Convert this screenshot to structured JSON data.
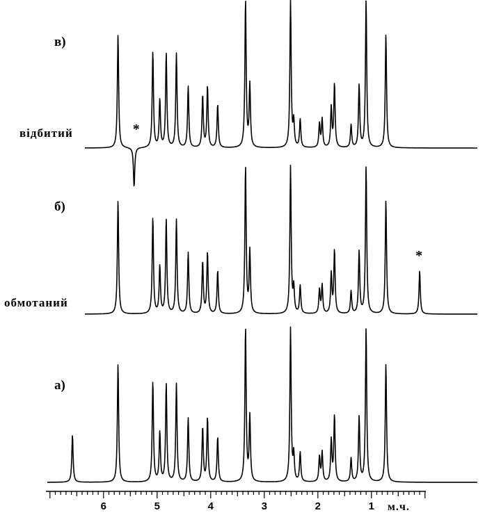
{
  "chart_data": {
    "type": "line",
    "x_axis": {
      "unit_label": "м.ч.",
      "range": [
        7.05,
        0.2
      ],
      "reversed": true,
      "major_ticks": [
        6,
        5,
        4,
        3,
        2,
        1
      ],
      "major_tick_labels": [
        "6",
        "5",
        "4",
        "3",
        "2",
        "1"
      ],
      "minor_tick_step": 0.1
    },
    "grid": false,
    "panels": [
      {
        "label": "в)",
        "trace_label": "відбитий",
        "star_label": "*",
        "star_ppm": 5.43,
        "x_start": 6.35,
        "peaks": [
          {
            "ppm": 5.73,
            "h": 1.0
          },
          {
            "ppm": 5.43,
            "h": -0.35
          },
          {
            "ppm": 5.08,
            "h": 0.85
          },
          {
            "ppm": 4.95,
            "h": 0.42
          },
          {
            "ppm": 4.83,
            "h": 0.83
          },
          {
            "ppm": 4.64,
            "h": 0.83
          },
          {
            "ppm": 4.42,
            "h": 0.54
          },
          {
            "ppm": 4.15,
            "h": 0.46
          },
          {
            "ppm": 4.06,
            "h": 0.54
          },
          {
            "ppm": 3.87,
            "h": 0.38
          },
          {
            "ppm": 3.35,
            "h": 1.3
          },
          {
            "ppm": 3.27,
            "h": 0.55
          },
          {
            "ppm": 2.51,
            "h": 1.3
          },
          {
            "ppm": 2.45,
            "h": 0.22
          },
          {
            "ppm": 2.33,
            "h": 0.25
          },
          {
            "ppm": 1.97,
            "h": 0.21
          },
          {
            "ppm": 1.92,
            "h": 0.25
          },
          {
            "ppm": 1.75,
            "h": 0.35
          },
          {
            "ppm": 1.69,
            "h": 0.56
          },
          {
            "ppm": 1.38,
            "h": 0.2
          },
          {
            "ppm": 1.23,
            "h": 0.55
          },
          {
            "ppm": 1.1,
            "h": 1.3
          },
          {
            "ppm": 0.73,
            "h": 1.0
          }
        ]
      },
      {
        "label": "б)",
        "trace_label": "обмотаний",
        "star_label": "*",
        "star_ppm": 0.1,
        "x_start": 6.35,
        "peaks": [
          {
            "ppm": 5.73,
            "h": 1.0
          },
          {
            "ppm": 5.08,
            "h": 0.85
          },
          {
            "ppm": 4.95,
            "h": 0.42
          },
          {
            "ppm": 4.83,
            "h": 0.83
          },
          {
            "ppm": 4.64,
            "h": 0.83
          },
          {
            "ppm": 4.42,
            "h": 0.54
          },
          {
            "ppm": 4.15,
            "h": 0.46
          },
          {
            "ppm": 4.06,
            "h": 0.54
          },
          {
            "ppm": 3.87,
            "h": 0.38
          },
          {
            "ppm": 3.35,
            "h": 1.3
          },
          {
            "ppm": 3.27,
            "h": 0.55
          },
          {
            "ppm": 2.51,
            "h": 1.3
          },
          {
            "ppm": 2.45,
            "h": 0.22
          },
          {
            "ppm": 2.33,
            "h": 0.25
          },
          {
            "ppm": 1.97,
            "h": 0.21
          },
          {
            "ppm": 1.92,
            "h": 0.25
          },
          {
            "ppm": 1.75,
            "h": 0.35
          },
          {
            "ppm": 1.69,
            "h": 0.56
          },
          {
            "ppm": 1.38,
            "h": 0.2
          },
          {
            "ppm": 1.23,
            "h": 0.55
          },
          {
            "ppm": 1.1,
            "h": 1.3
          },
          {
            "ppm": 0.73,
            "h": 1.0
          },
          {
            "ppm": 0.1,
            "h": 0.38
          }
        ]
      },
      {
        "label": "а)",
        "trace_label": "",
        "x_start": 7.05,
        "peaks": [
          {
            "ppm": 6.58,
            "h": 0.4
          },
          {
            "ppm": 5.73,
            "h": 1.0
          },
          {
            "ppm": 5.08,
            "h": 0.85
          },
          {
            "ppm": 4.95,
            "h": 0.42
          },
          {
            "ppm": 4.83,
            "h": 0.83
          },
          {
            "ppm": 4.64,
            "h": 0.83
          },
          {
            "ppm": 4.42,
            "h": 0.54
          },
          {
            "ppm": 4.15,
            "h": 0.46
          },
          {
            "ppm": 4.06,
            "h": 0.54
          },
          {
            "ppm": 3.87,
            "h": 0.38
          },
          {
            "ppm": 3.35,
            "h": 1.3
          },
          {
            "ppm": 3.27,
            "h": 0.55
          },
          {
            "ppm": 2.51,
            "h": 1.3
          },
          {
            "ppm": 2.45,
            "h": 0.22
          },
          {
            "ppm": 2.33,
            "h": 0.25
          },
          {
            "ppm": 1.97,
            "h": 0.21
          },
          {
            "ppm": 1.92,
            "h": 0.25
          },
          {
            "ppm": 1.75,
            "h": 0.35
          },
          {
            "ppm": 1.69,
            "h": 0.56
          },
          {
            "ppm": 1.38,
            "h": 0.2
          },
          {
            "ppm": 1.23,
            "h": 0.55
          },
          {
            "ppm": 1.1,
            "h": 1.3
          },
          {
            "ppm": 0.73,
            "h": 1.0
          }
        ]
      }
    ]
  }
}
